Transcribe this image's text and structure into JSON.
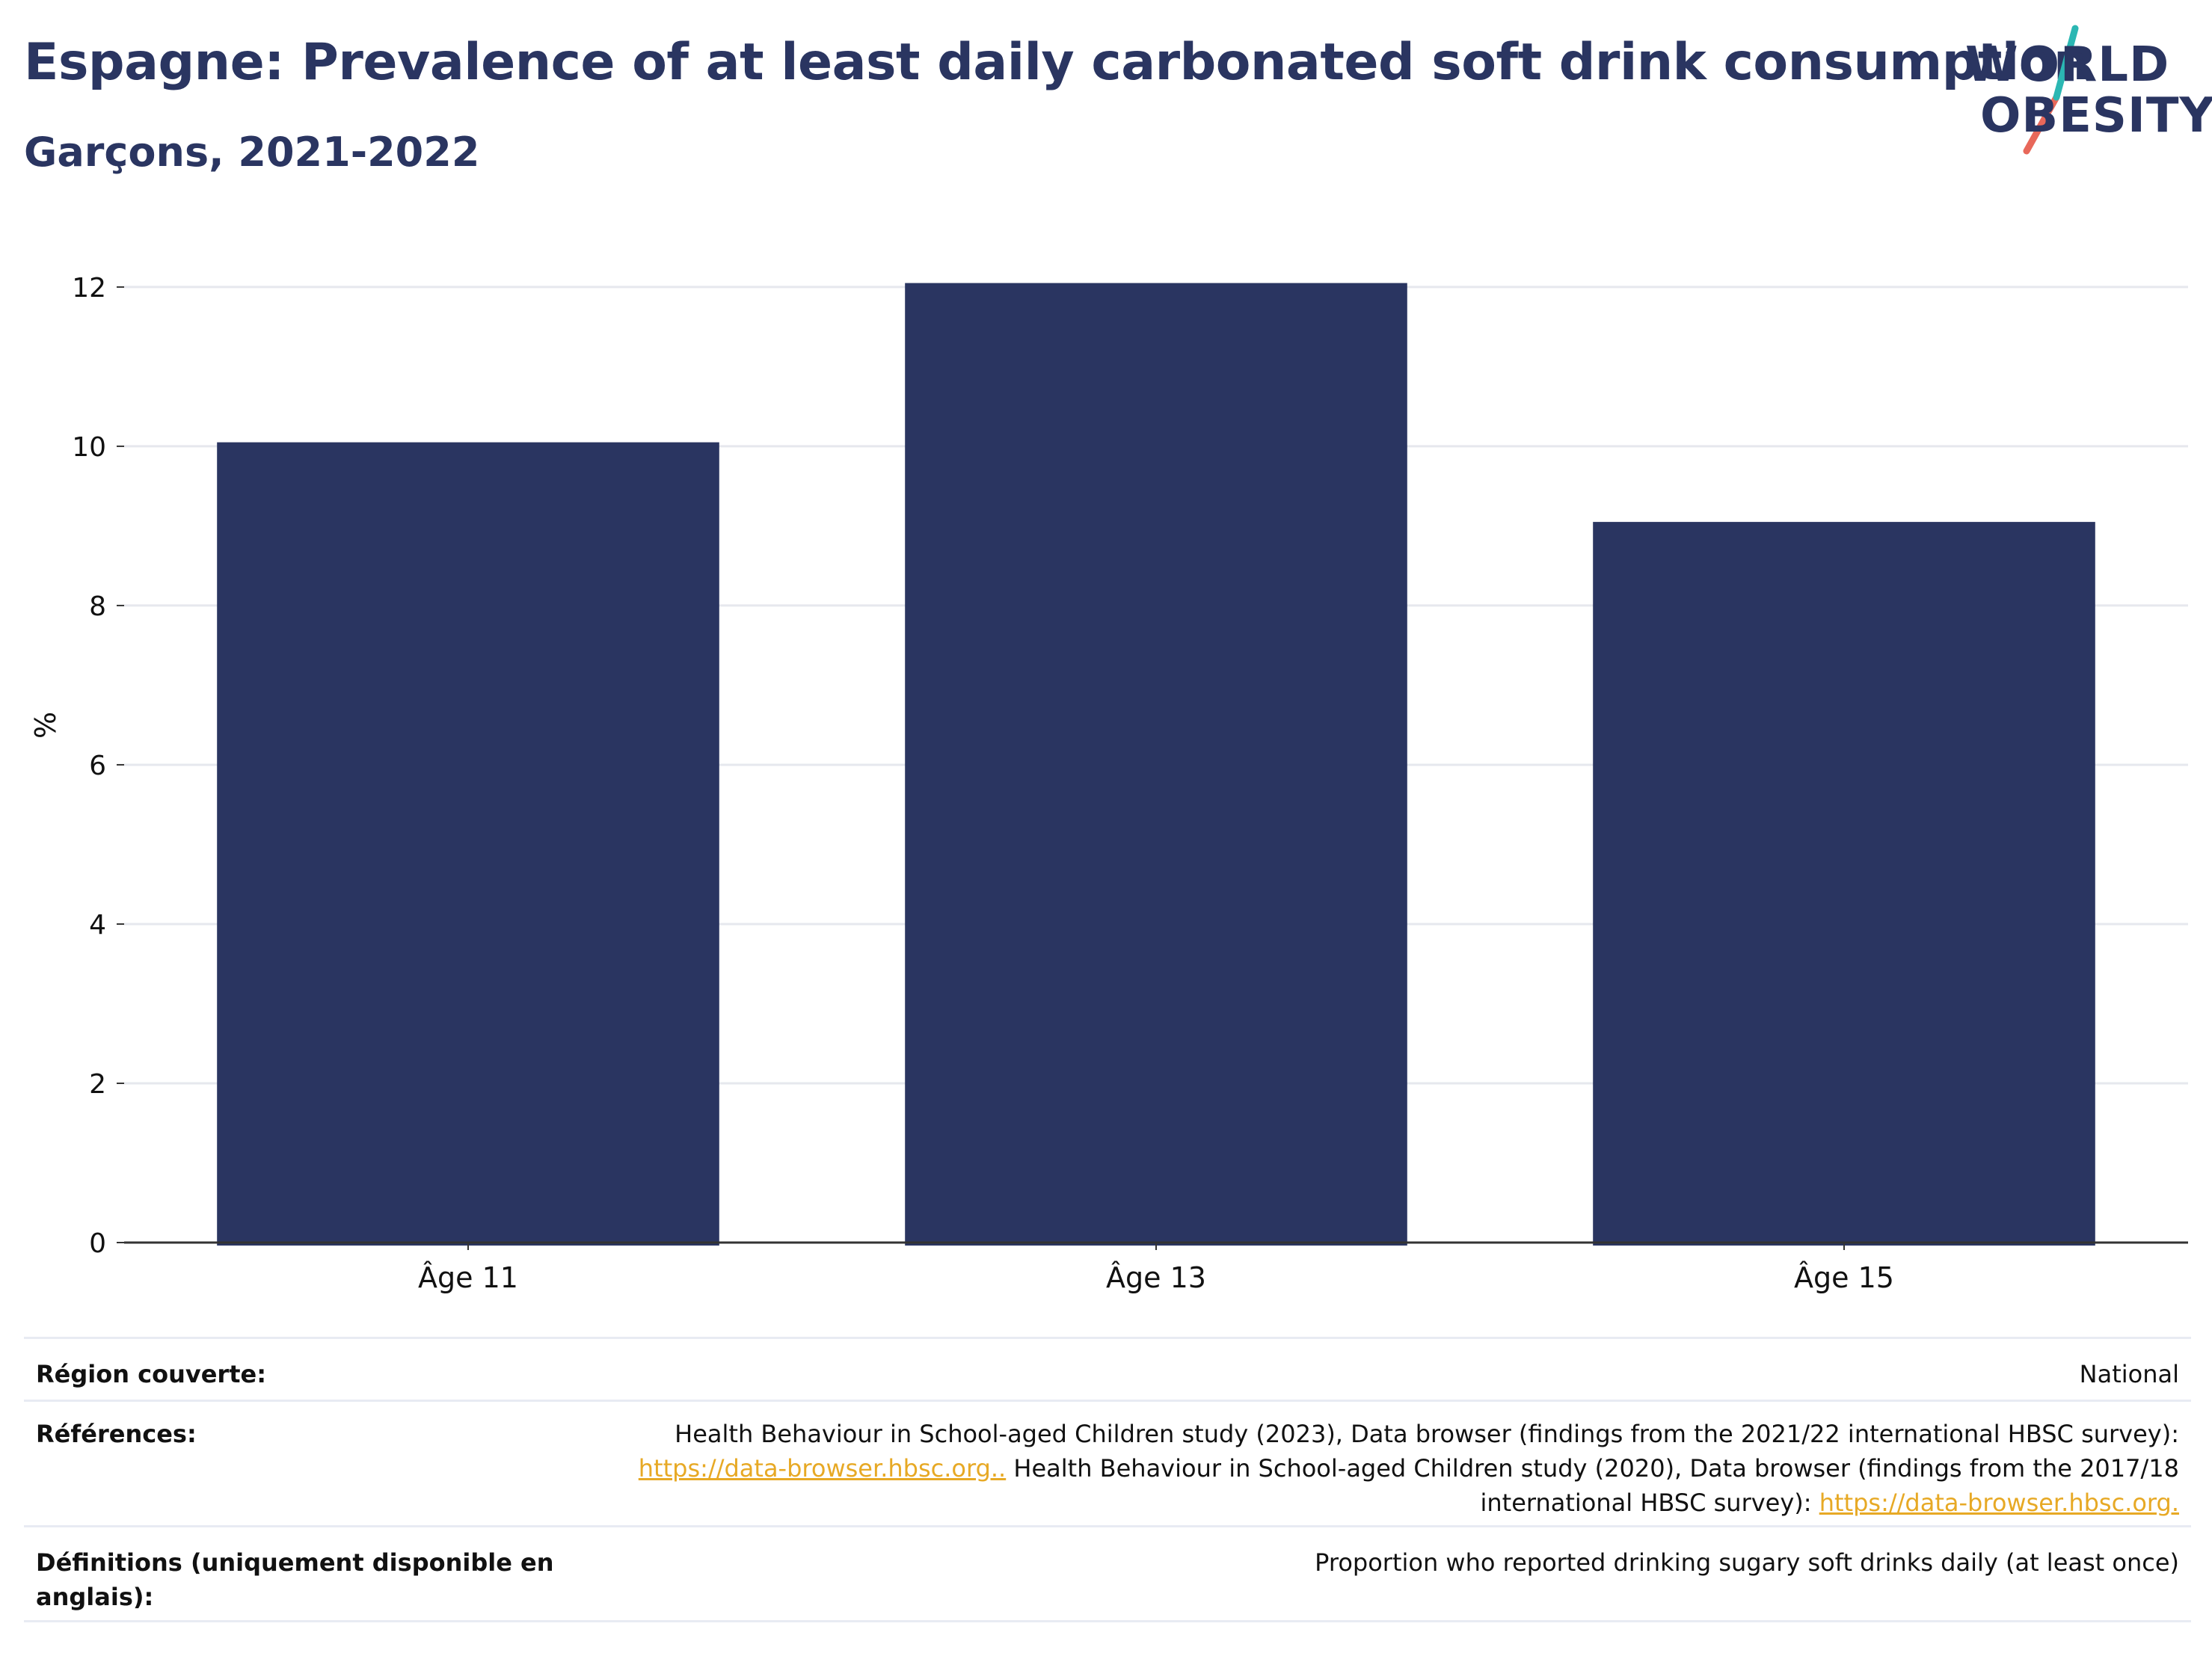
{
  "header": {
    "title": "Espagne: Prevalence of at least daily carbonated soft drink consumption",
    "subtitle": "Garçons, 2021-2022"
  },
  "logo": {
    "line1": "WORLD",
    "line2": "OBESITY",
    "accent_teal": "#2bb7b3",
    "accent_coral": "#e8685a"
  },
  "chart_data": {
    "type": "bar",
    "categories": [
      "Âge 11",
      "Âge 13",
      "Âge 15"
    ],
    "values": [
      10.05,
      12.05,
      9.05
    ],
    "ylabel": "%",
    "yticks": [
      0,
      2,
      4,
      6,
      8,
      10,
      12
    ],
    "ylim": [
      0,
      12.6
    ],
    "grid": true,
    "bar_color": "#2a3561"
  },
  "info": {
    "region_label": "Région couverte:",
    "region_value": "National",
    "references_label": "Références:",
    "references_line1": "Health Behaviour in School-aged Children study (2023), Data browser (findings from the 2021/22 international HBSC survey):",
    "references_link1": "https://data-browser.hbsc.org..",
    "references_line2": " Health Behaviour in School-aged Children study (2020), Data browser (findings from the 2017/18",
    "references_line3": "international HBSC survey): ",
    "references_link2": "https://data-browser.hbsc.org.",
    "definitions_label_line1": "Définitions (uniquement disponible en",
    "definitions_label_line2": "anglais):",
    "definitions_value": "Proportion who reported drinking sugary soft drinks daily (at least once)"
  }
}
